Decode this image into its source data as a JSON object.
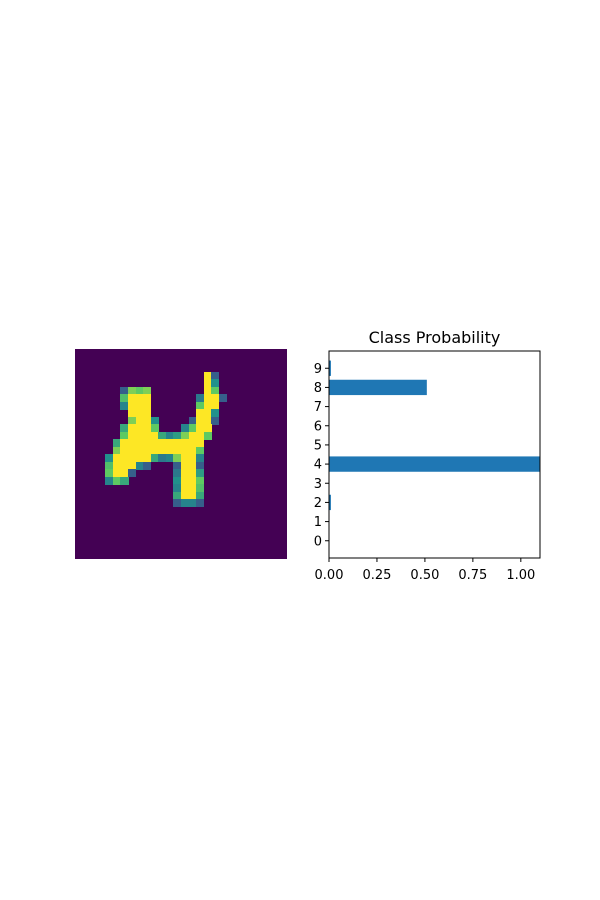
{
  "chart_data": [
    {
      "type": "heatmap",
      "title": "",
      "colormap": "viridis",
      "grid": false,
      "axes_visible": false,
      "rows": 28,
      "cols": 28,
      "background_value": 0.0,
      "pixels": [
        [
          3,
          17,
          1.0
        ],
        [
          3,
          18,
          0.3
        ],
        [
          4,
          17,
          1.0
        ],
        [
          4,
          18,
          0.5
        ],
        [
          5,
          6,
          0.3
        ],
        [
          5,
          7,
          0.8
        ],
        [
          5,
          8,
          0.75
        ],
        [
          5,
          9,
          0.8
        ],
        [
          5,
          17,
          1.0
        ],
        [
          5,
          18,
          0.75
        ],
        [
          6,
          6,
          0.7
        ],
        [
          6,
          7,
          1.0
        ],
        [
          6,
          8,
          1.0
        ],
        [
          6,
          9,
          1.0
        ],
        [
          6,
          16,
          0.4
        ],
        [
          6,
          17,
          1.0
        ],
        [
          6,
          18,
          1.0
        ],
        [
          6,
          19,
          0.3
        ],
        [
          7,
          6,
          0.45
        ],
        [
          7,
          7,
          1.0
        ],
        [
          7,
          8,
          1.0
        ],
        [
          7,
          9,
          1.0
        ],
        [
          7,
          16,
          0.75
        ],
        [
          7,
          17,
          1.0
        ],
        [
          7,
          18,
          1.0
        ],
        [
          8,
          7,
          1.0
        ],
        [
          8,
          8,
          1.0
        ],
        [
          8,
          9,
          1.0
        ],
        [
          8,
          16,
          1.0
        ],
        [
          8,
          17,
          1.0
        ],
        [
          8,
          18,
          0.5
        ],
        [
          9,
          7,
          0.8
        ],
        [
          9,
          8,
          1.0
        ],
        [
          9,
          9,
          1.0
        ],
        [
          9,
          10,
          0.5
        ],
        [
          9,
          15,
          0.3
        ],
        [
          9,
          16,
          1.0
        ],
        [
          9,
          17,
          1.0
        ],
        [
          9,
          18,
          0.3
        ],
        [
          10,
          6,
          0.6
        ],
        [
          10,
          7,
          1.0
        ],
        [
          10,
          8,
          1.0
        ],
        [
          10,
          9,
          1.0
        ],
        [
          10,
          10,
          0.75
        ],
        [
          10,
          14,
          0.45
        ],
        [
          10,
          15,
          0.75
        ],
        [
          10,
          16,
          1.0
        ],
        [
          10,
          17,
          1.0
        ],
        [
          11,
          6,
          0.75
        ],
        [
          11,
          7,
          1.0
        ],
        [
          11,
          8,
          1.0
        ],
        [
          11,
          9,
          1.0
        ],
        [
          11,
          10,
          1.0
        ],
        [
          11,
          11,
          0.6
        ],
        [
          11,
          12,
          0.45
        ],
        [
          11,
          13,
          0.55
        ],
        [
          11,
          14,
          0.8
        ],
        [
          11,
          15,
          1.0
        ],
        [
          11,
          16,
          1.0
        ],
        [
          11,
          17,
          0.75
        ],
        [
          12,
          5,
          0.6
        ],
        [
          12,
          6,
          1.0
        ],
        [
          12,
          7,
          1.0
        ],
        [
          12,
          8,
          1.0
        ],
        [
          12,
          9,
          1.0
        ],
        [
          12,
          10,
          1.0
        ],
        [
          12,
          11,
          1.0
        ],
        [
          12,
          12,
          1.0
        ],
        [
          12,
          13,
          1.0
        ],
        [
          12,
          14,
          1.0
        ],
        [
          12,
          15,
          1.0
        ],
        [
          12,
          16,
          1.0
        ],
        [
          13,
          5,
          0.8
        ],
        [
          13,
          6,
          1.0
        ],
        [
          13,
          7,
          1.0
        ],
        [
          13,
          8,
          1.0
        ],
        [
          13,
          9,
          1.0
        ],
        [
          13,
          10,
          1.0
        ],
        [
          13,
          11,
          1.0
        ],
        [
          13,
          12,
          1.0
        ],
        [
          13,
          13,
          1.0
        ],
        [
          13,
          14,
          1.0
        ],
        [
          13,
          15,
          1.0
        ],
        [
          13,
          16,
          0.75
        ],
        [
          14,
          4,
          0.5
        ],
        [
          14,
          5,
          1.0
        ],
        [
          14,
          6,
          1.0
        ],
        [
          14,
          7,
          1.0
        ],
        [
          14,
          8,
          1.0
        ],
        [
          14,
          9,
          1.0
        ],
        [
          14,
          10,
          0.6
        ],
        [
          14,
          11,
          0.4
        ],
        [
          14,
          12,
          0.45
        ],
        [
          14,
          13,
          0.8
        ],
        [
          14,
          14,
          1.0
        ],
        [
          14,
          15,
          1.0
        ],
        [
          14,
          16,
          0.45
        ],
        [
          15,
          4,
          0.7
        ],
        [
          15,
          5,
          1.0
        ],
        [
          15,
          6,
          1.0
        ],
        [
          15,
          7,
          1.0
        ],
        [
          15,
          8,
          0.45
        ],
        [
          15,
          9,
          0.3
        ],
        [
          15,
          13,
          0.3
        ],
        [
          15,
          14,
          1.0
        ],
        [
          15,
          15,
          1.0
        ],
        [
          15,
          16,
          0.3
        ],
        [
          16,
          4,
          0.75
        ],
        [
          16,
          5,
          1.0
        ],
        [
          16,
          6,
          1.0
        ],
        [
          16,
          7,
          0.3
        ],
        [
          16,
          13,
          0.4
        ],
        [
          16,
          14,
          1.0
        ],
        [
          16,
          15,
          1.0
        ],
        [
          16,
          16,
          0.55
        ],
        [
          17,
          4,
          0.45
        ],
        [
          17,
          5,
          0.75
        ],
        [
          17,
          6,
          0.6
        ],
        [
          17,
          13,
          0.5
        ],
        [
          17,
          14,
          1.0
        ],
        [
          17,
          15,
          1.0
        ],
        [
          17,
          16,
          0.75
        ],
        [
          18,
          13,
          0.45
        ],
        [
          18,
          14,
          1.0
        ],
        [
          18,
          15,
          1.0
        ],
        [
          18,
          16,
          0.7
        ],
        [
          19,
          13,
          0.6
        ],
        [
          19,
          14,
          1.0
        ],
        [
          19,
          15,
          1.0
        ],
        [
          19,
          16,
          0.6
        ],
        [
          20,
          13,
          0.3
        ],
        [
          20,
          14,
          0.45
        ],
        [
          20,
          15,
          0.45
        ],
        [
          20,
          16,
          0.3
        ]
      ]
    },
    {
      "type": "bar",
      "orientation": "horizontal",
      "title": "Class Probability",
      "xlabel": "",
      "ylabel": "",
      "categories": [
        "0",
        "1",
        "2",
        "3",
        "4",
        "5",
        "6",
        "7",
        "8",
        "9"
      ],
      "values": [
        0.0,
        0.0,
        0.01,
        0.0,
        1.1,
        0.0,
        0.0,
        0.0,
        0.51,
        0.01
      ],
      "xlim": [
        0,
        1.1
      ],
      "xticks": [
        "0.00",
        "0.25",
        "0.50",
        "0.75",
        "1.00"
      ],
      "grid": false,
      "color": "#1f77b4"
    }
  ]
}
